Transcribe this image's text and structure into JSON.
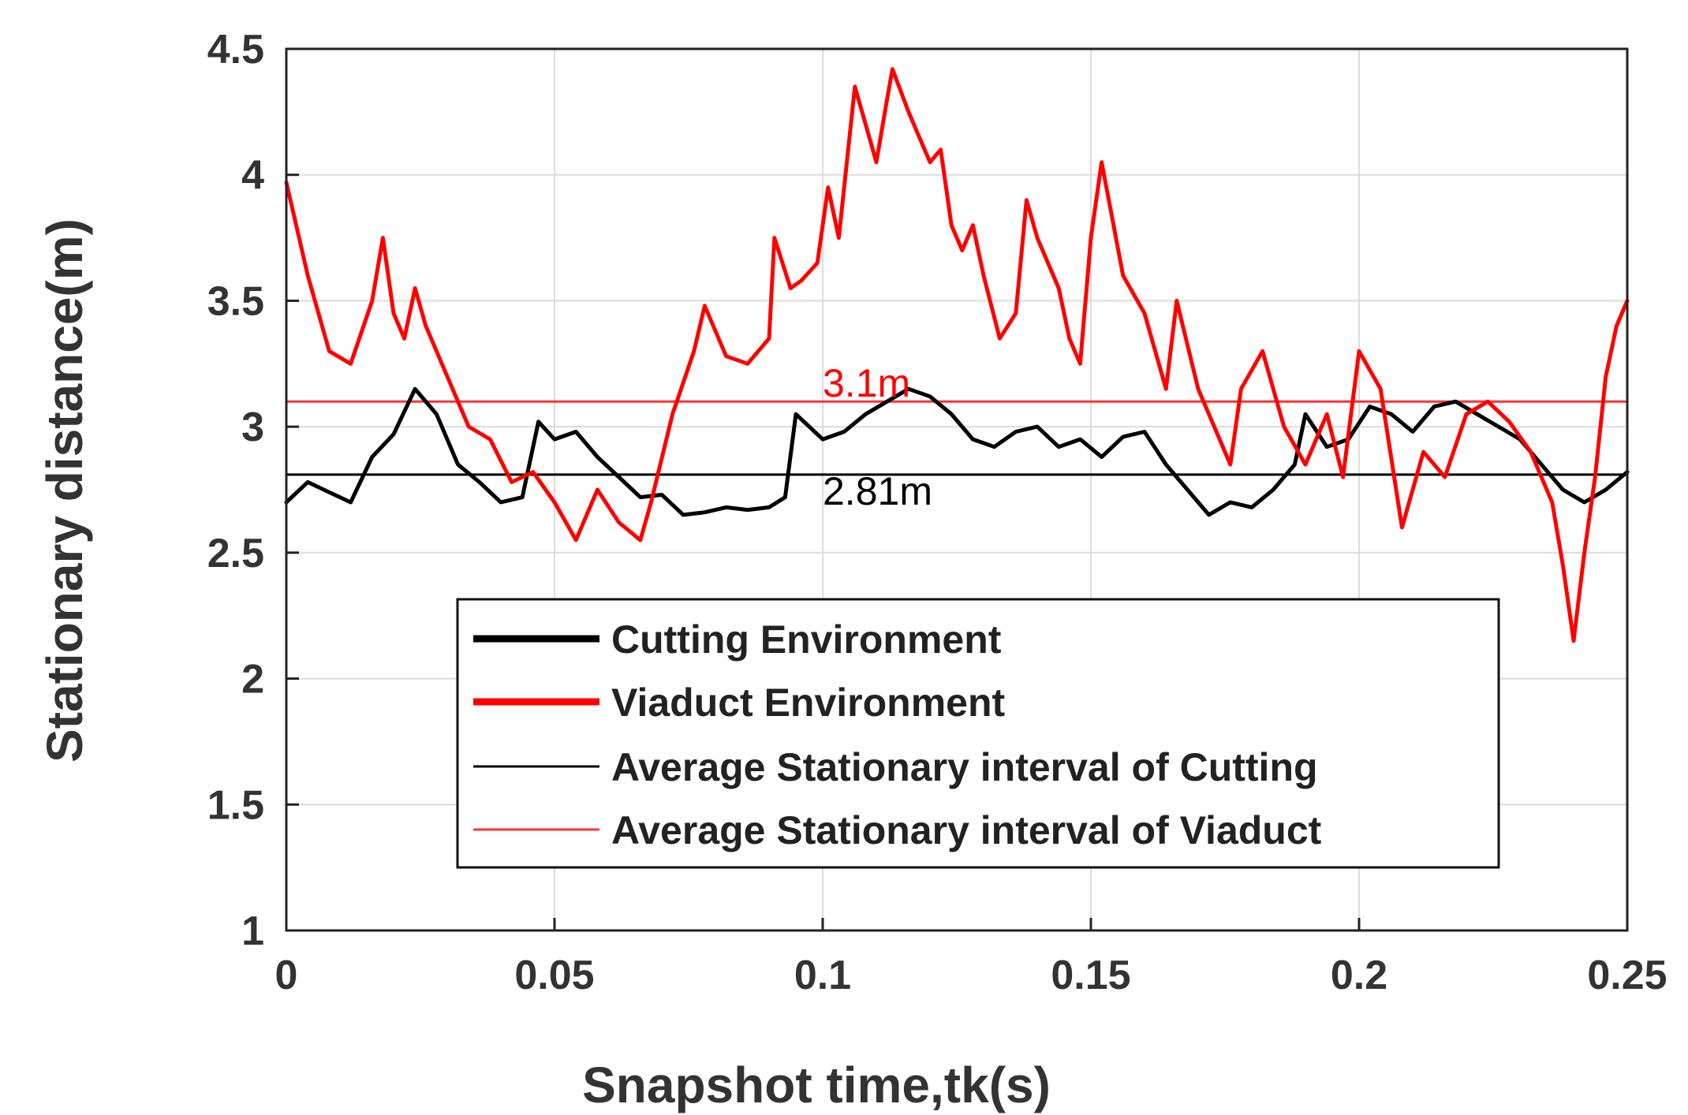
{
  "chart_data": {
    "type": "line",
    "title": "",
    "xlabel": "Snapshot time,tk(s)",
    "ylabel": "Stationary distance(m)",
    "xlim": [
      0,
      0.25
    ],
    "ylim": [
      1,
      4.5
    ],
    "grid": true,
    "x_ticks": [
      "0",
      "0.05",
      "0.1",
      "0.15",
      "0.2",
      "0.25"
    ],
    "y_ticks": [
      "1",
      "1.5",
      "2",
      "2.5",
      "3",
      "3.5",
      "4",
      "4.5"
    ],
    "legend_position": "bottom-center",
    "series": [
      {
        "name": "Cutting Environment",
        "color": "#000000",
        "style": "thick",
        "x": [
          0,
          0.004,
          0.008,
          0.012,
          0.016,
          0.02,
          0.024,
          0.028,
          0.032,
          0.036,
          0.04,
          0.044,
          0.047,
          0.05,
          0.054,
          0.058,
          0.062,
          0.066,
          0.07,
          0.074,
          0.078,
          0.082,
          0.086,
          0.09,
          0.093,
          0.095,
          0.1,
          0.104,
          0.108,
          0.112,
          0.116,
          0.12,
          0.124,
          0.128,
          0.132,
          0.136,
          0.14,
          0.144,
          0.148,
          0.152,
          0.156,
          0.16,
          0.164,
          0.168,
          0.172,
          0.176,
          0.18,
          0.184,
          0.188,
          0.19,
          0.194,
          0.198,
          0.202,
          0.206,
          0.21,
          0.214,
          0.218,
          0.222,
          0.226,
          0.23,
          0.234,
          0.238,
          0.242,
          0.246,
          0.25
        ],
        "y": [
          2.7,
          2.78,
          2.74,
          2.7,
          2.88,
          2.97,
          3.15,
          3.05,
          2.85,
          2.78,
          2.7,
          2.72,
          3.02,
          2.95,
          2.98,
          2.88,
          2.8,
          2.72,
          2.73,
          2.65,
          2.66,
          2.68,
          2.67,
          2.68,
          2.72,
          3.05,
          2.95,
          2.98,
          3.05,
          3.1,
          3.15,
          3.12,
          3.05,
          2.95,
          2.92,
          2.98,
          3.0,
          2.92,
          2.95,
          2.88,
          2.96,
          2.98,
          2.85,
          2.75,
          2.65,
          2.7,
          2.68,
          2.75,
          2.85,
          3.05,
          2.92,
          2.95,
          3.08,
          3.05,
          2.98,
          3.08,
          3.1,
          3.05,
          3.0,
          2.95,
          2.85,
          2.75,
          2.7,
          2.75,
          2.82
        ]
      },
      {
        "name": "Viaduct Environment",
        "color": "#ff0000",
        "style": "thick",
        "x": [
          0,
          0.004,
          0.008,
          0.012,
          0.016,
          0.018,
          0.02,
          0.022,
          0.024,
          0.026,
          0.03,
          0.034,
          0.038,
          0.042,
          0.046,
          0.05,
          0.054,
          0.058,
          0.062,
          0.066,
          0.068,
          0.072,
          0.076,
          0.078,
          0.082,
          0.086,
          0.09,
          0.091,
          0.094,
          0.096,
          0.099,
          0.101,
          0.103,
          0.106,
          0.108,
          0.11,
          0.112,
          0.113,
          0.116,
          0.118,
          0.12,
          0.122,
          0.124,
          0.126,
          0.128,
          0.13,
          0.133,
          0.136,
          0.138,
          0.14,
          0.144,
          0.146,
          0.148,
          0.15,
          0.152,
          0.156,
          0.16,
          0.164,
          0.166,
          0.17,
          0.174,
          0.176,
          0.178,
          0.182,
          0.186,
          0.19,
          0.194,
          0.197,
          0.2,
          0.204,
          0.208,
          0.212,
          0.216,
          0.22,
          0.224,
          0.228,
          0.232,
          0.236,
          0.238,
          0.24,
          0.242,
          0.244,
          0.246,
          0.248,
          0.25
        ],
        "y": [
          3.97,
          3.6,
          3.3,
          3.25,
          3.5,
          3.75,
          3.45,
          3.35,
          3.55,
          3.4,
          3.2,
          3.0,
          2.95,
          2.78,
          2.82,
          2.7,
          2.55,
          2.75,
          2.62,
          2.55,
          2.7,
          3.05,
          3.3,
          3.48,
          3.28,
          3.25,
          3.35,
          3.75,
          3.55,
          3.58,
          3.65,
          3.95,
          3.75,
          4.35,
          4.2,
          4.05,
          4.3,
          4.42,
          4.25,
          4.15,
          4.05,
          4.1,
          3.8,
          3.7,
          3.8,
          3.6,
          3.35,
          3.45,
          3.9,
          3.75,
          3.55,
          3.35,
          3.25,
          3.75,
          4.05,
          3.6,
          3.45,
          3.15,
          3.5,
          3.15,
          2.95,
          2.85,
          3.15,
          3.3,
          3.0,
          2.85,
          3.05,
          2.8,
          3.3,
          3.15,
          2.6,
          2.9,
          2.8,
          3.05,
          3.1,
          3.02,
          2.9,
          2.7,
          2.45,
          2.15,
          2.5,
          2.8,
          3.2,
          3.4,
          3.5
        ]
      },
      {
        "name": "Average Stationary interval of Cutting",
        "color": "#000000",
        "style": "thin",
        "constant": 2.81
      },
      {
        "name": "Average Stationary interval of Viaduct",
        "color": "#ff3333",
        "style": "thin",
        "constant": 3.1
      }
    ],
    "annotations": [
      {
        "text": "3.1m",
        "x": 0.1,
        "y": 3.1,
        "color": "#ff0000"
      },
      {
        "text": "2.81m",
        "x": 0.1,
        "y": 2.81,
        "color": "#000000"
      }
    ]
  }
}
